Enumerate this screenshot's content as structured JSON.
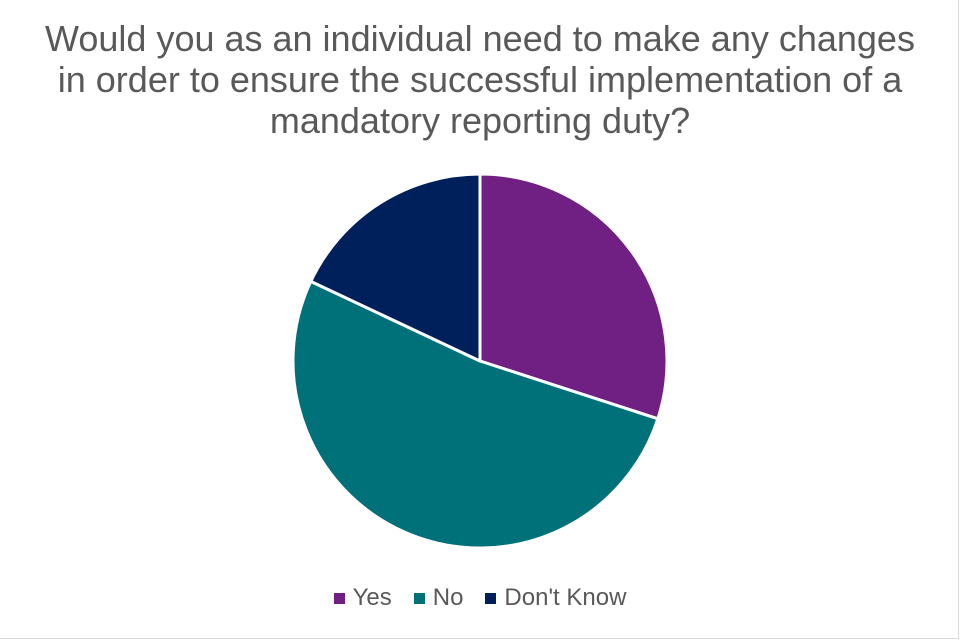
{
  "chart_data": {
    "type": "pie",
    "title_lines": [
      "Would you as an individual need to make any changes",
      "in order to ensure the successful implementation of a",
      "mandatory reporting duty?"
    ],
    "categories": [
      "Yes",
      "No",
      "Don't Know"
    ],
    "values": [
      30,
      52,
      18
    ],
    "colors": [
      "#702082",
      "#007079",
      "#00205b"
    ],
    "slice_border_color": "#ffffff",
    "start_angle_deg": 0,
    "direction": "clockwise",
    "legend_position": "bottom"
  }
}
